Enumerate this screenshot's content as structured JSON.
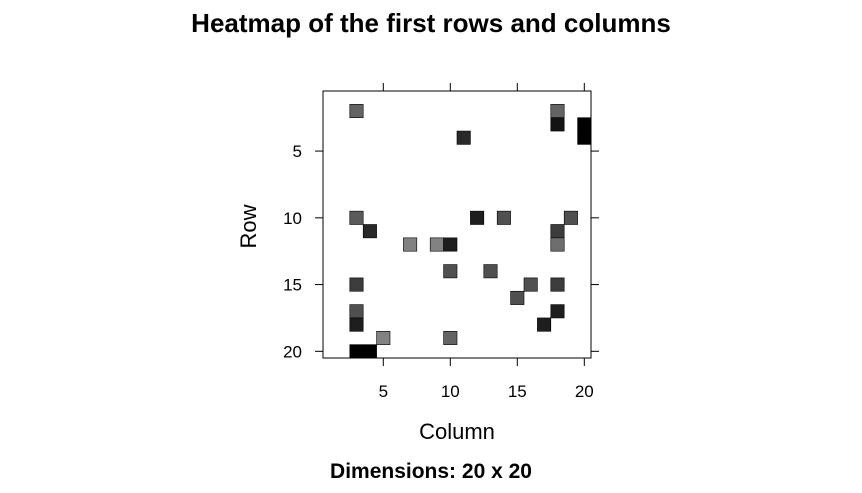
{
  "chart_data": {
    "type": "heatmap",
    "title": "Heatmap of the first rows and columns",
    "subtitle": "Dimensions: 20 x 20",
    "xlabel": "Column",
    "ylabel": "Row",
    "xlim": [
      0.5,
      20.5
    ],
    "ylim": [
      20.5,
      0.5
    ],
    "x_ticks": [
      5,
      10,
      15,
      20
    ],
    "y_ticks": [
      5,
      10,
      15,
      20
    ],
    "n_rows": 20,
    "n_cols": 20,
    "color_scale": "grayscale",
    "cells": [
      {
        "row": 2,
        "col": 3,
        "value": 0.5
      },
      {
        "row": 2,
        "col": 18,
        "value": 0.5
      },
      {
        "row": 3,
        "col": 18,
        "value": 0.9
      },
      {
        "row": 3,
        "col": 20,
        "value": 1.0
      },
      {
        "row": 4,
        "col": 11,
        "value": 0.8
      },
      {
        "row": 4,
        "col": 20,
        "value": 1.0
      },
      {
        "row": 10,
        "col": 3,
        "value": 0.55
      },
      {
        "row": 10,
        "col": 12,
        "value": 0.85
      },
      {
        "row": 10,
        "col": 14,
        "value": 0.6
      },
      {
        "row": 10,
        "col": 19,
        "value": 0.6
      },
      {
        "row": 11,
        "col": 4,
        "value": 0.8
      },
      {
        "row": 11,
        "col": 18,
        "value": 0.7
      },
      {
        "row": 12,
        "col": 7,
        "value": 0.35
      },
      {
        "row": 12,
        "col": 9,
        "value": 0.35
      },
      {
        "row": 12,
        "col": 10,
        "value": 0.85
      },
      {
        "row": 12,
        "col": 18,
        "value": 0.45
      },
      {
        "row": 14,
        "col": 10,
        "value": 0.6
      },
      {
        "row": 14,
        "col": 13,
        "value": 0.6
      },
      {
        "row": 15,
        "col": 3,
        "value": 0.7
      },
      {
        "row": 15,
        "col": 16,
        "value": 0.6
      },
      {
        "row": 15,
        "col": 18,
        "value": 0.7
      },
      {
        "row": 16,
        "col": 15,
        "value": 0.6
      },
      {
        "row": 17,
        "col": 3,
        "value": 0.6
      },
      {
        "row": 17,
        "col": 18,
        "value": 0.85
      },
      {
        "row": 18,
        "col": 3,
        "value": 0.85
      },
      {
        "row": 18,
        "col": 17,
        "value": 0.85
      },
      {
        "row": 19,
        "col": 5,
        "value": 0.35
      },
      {
        "row": 19,
        "col": 10,
        "value": 0.5
      },
      {
        "row": 20,
        "col": 3,
        "value": 1.0
      },
      {
        "row": 20,
        "col": 4,
        "value": 1.0
      }
    ],
    "grid": false,
    "legend": false
  }
}
